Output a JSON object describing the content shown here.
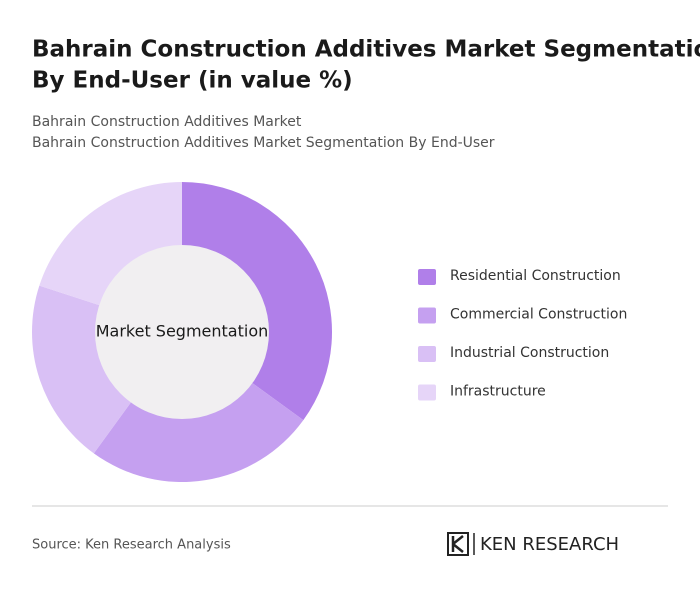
{
  "chart_data": {
    "type": "donut",
    "title": [
      "Bahrain Construction Additives Market Segmentation",
      "By End-User (in value %)"
    ],
    "subtitle": [
      "Bahrain Construction Additives Market",
      "Bahrain Construction Additives Market Segmentation By End-User"
    ],
    "center_label": "Market Segmentation",
    "categories": [
      "Residential Construction",
      "Commercial Construction",
      "Industrial Construction",
      "Infrastructure"
    ],
    "values": [
      35,
      25,
      20,
      20
    ],
    "colors": [
      "#b07fe9",
      "#c5a0f0",
      "#d9c0f5",
      "#e6d5f8"
    ],
    "source": "Source: Ken Research Analysis",
    "logo": "KEN RESEARCH"
  }
}
